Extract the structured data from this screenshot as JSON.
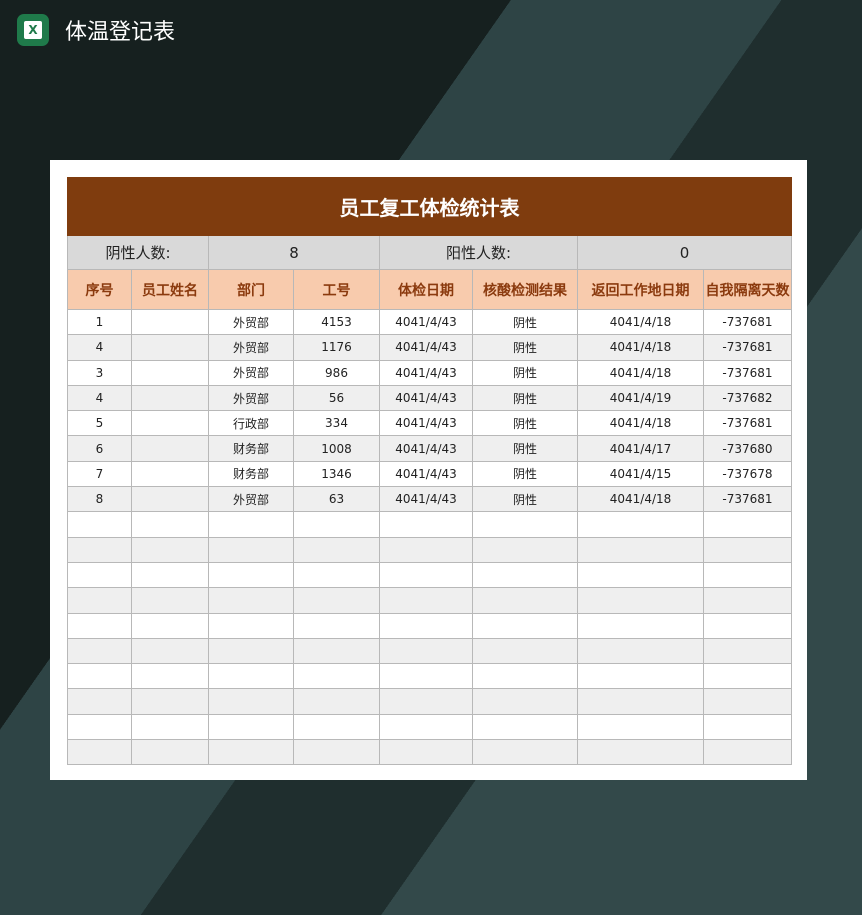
{
  "app": {
    "title": "体温登记表",
    "icon": "excel-icon"
  },
  "sheet": {
    "title": "员工复工体检统计表",
    "summary": {
      "neg_label": "阴性人数:",
      "neg_value": "8",
      "pos_label": "阳性人数:",
      "pos_value": "0"
    },
    "headers": [
      "序号",
      "员工姓名",
      "部门",
      "工号",
      "体检日期",
      "核酸检测结果",
      "返回工作地日期",
      "自我隔离天数"
    ],
    "rows": [
      [
        "1",
        "",
        "外贸部",
        "4153",
        "4041/4/43",
        "阴性",
        "4041/4/18",
        "-737681"
      ],
      [
        "4",
        "",
        "外贸部",
        "1176",
        "4041/4/43",
        "阴性",
        "4041/4/18",
        "-737681"
      ],
      [
        "3",
        "",
        "外贸部",
        "986",
        "4041/4/43",
        "阴性",
        "4041/4/18",
        "-737681"
      ],
      [
        "4",
        "",
        "外贸部",
        "56",
        "4041/4/43",
        "阴性",
        "4041/4/19",
        "-737682"
      ],
      [
        "5",
        "",
        "行政部",
        "334",
        "4041/4/43",
        "阴性",
        "4041/4/18",
        "-737681"
      ],
      [
        "6",
        "",
        "财务部",
        "1008",
        "4041/4/43",
        "阴性",
        "4041/4/17",
        "-737680"
      ],
      [
        "7",
        "",
        "财务部",
        "1346",
        "4041/4/43",
        "阴性",
        "4041/4/15",
        "-737678"
      ],
      [
        "8",
        "",
        "外贸部",
        "63",
        "4041/4/43",
        "阴性",
        "4041/4/18",
        "-737681"
      ]
    ],
    "empty_rows": 10
  },
  "colors": {
    "title_bg": "#7f3c0e",
    "header_bg": "#f8cbad",
    "header_text": "#8b3a0e",
    "summary_bg": "#d9d9d9"
  }
}
